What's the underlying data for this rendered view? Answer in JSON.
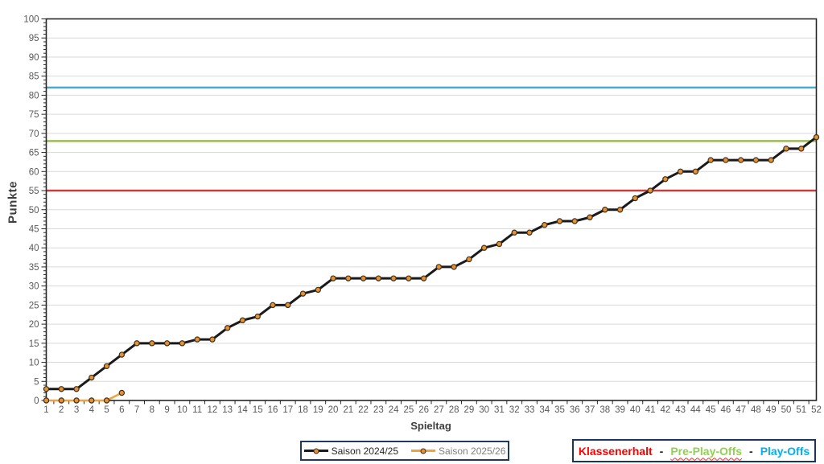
{
  "chart_data": {
    "type": "line",
    "title": "",
    "xlabel": "Spieltag",
    "ylabel": "Punkte",
    "ylim": [
      0,
      100
    ],
    "ytick_step": 5,
    "yticks": [
      0,
      5,
      10,
      15,
      20,
      25,
      30,
      35,
      40,
      45,
      50,
      55,
      60,
      65,
      70,
      75,
      80,
      85,
      90,
      95,
      100
    ],
    "x": [
      1,
      2,
      3,
      4,
      5,
      6,
      7,
      8,
      9,
      10,
      11,
      12,
      13,
      14,
      15,
      16,
      17,
      18,
      19,
      20,
      21,
      22,
      23,
      24,
      25,
      26,
      27,
      28,
      29,
      30,
      31,
      32,
      33,
      34,
      35,
      36,
      37,
      38,
      39,
      40,
      41,
      42,
      43,
      44,
      45,
      46,
      47,
      48,
      49,
      50,
      51,
      52
    ],
    "grid": "horizontal",
    "legend_position": "bottom-center",
    "series": [
      {
        "name": "Saison 2024/25",
        "line_color": "#1a1a1a",
        "line_width": 3,
        "marker": "circle",
        "marker_fill": "#e8912d",
        "marker_stroke": "#3b2f23",
        "label_color": "#262626",
        "values": [
          3,
          3,
          3,
          6,
          9,
          12,
          15,
          15,
          15,
          15,
          16,
          16,
          19,
          21,
          22,
          25,
          25,
          28,
          29,
          32,
          32,
          32,
          32,
          32,
          32,
          32,
          35,
          35,
          37,
          40,
          41,
          44,
          44,
          46,
          47,
          47,
          48,
          50,
          50,
          53,
          55,
          58,
          60,
          60,
          63,
          63,
          63,
          63,
          63,
          66,
          66,
          69
        ]
      },
      {
        "name": "Saison 2025/26",
        "line_color": "#f2a13b",
        "line_width": 2.5,
        "marker": "circle",
        "marker_fill": "#e8912d",
        "marker_stroke": "#3b2f23",
        "label_color": "#7f7f7f",
        "values": [
          0,
          0,
          0,
          0,
          0,
          2
        ]
      }
    ],
    "reference_lines": [
      {
        "name": "Play-Offs",
        "value": 82,
        "color": "#42acd6"
      },
      {
        "name": "Pre-Play-Offs",
        "value": 68,
        "color": "#9bbb59"
      },
      {
        "name": "Klassenerhalt",
        "value": 55,
        "color": "#c0413e"
      }
    ],
    "axis_color": "#262626",
    "gridline_color": "#d9d9d9",
    "tick_label_color": "#595959"
  },
  "legend": {
    "items": [
      {
        "label": "Saison 2024/25"
      },
      {
        "label": "Saison 2025/26"
      }
    ]
  },
  "zones_box": {
    "separator": "-",
    "separator_color": "#1f1f1f",
    "items": [
      {
        "label": "Klassenerhalt",
        "color": "#ff0000",
        "underline": false
      },
      {
        "label": "Pre-Play-Offs",
        "color": "#92d050",
        "underline": true
      },
      {
        "label": "Play-Offs",
        "color": "#00b0f0",
        "underline": false
      }
    ]
  }
}
